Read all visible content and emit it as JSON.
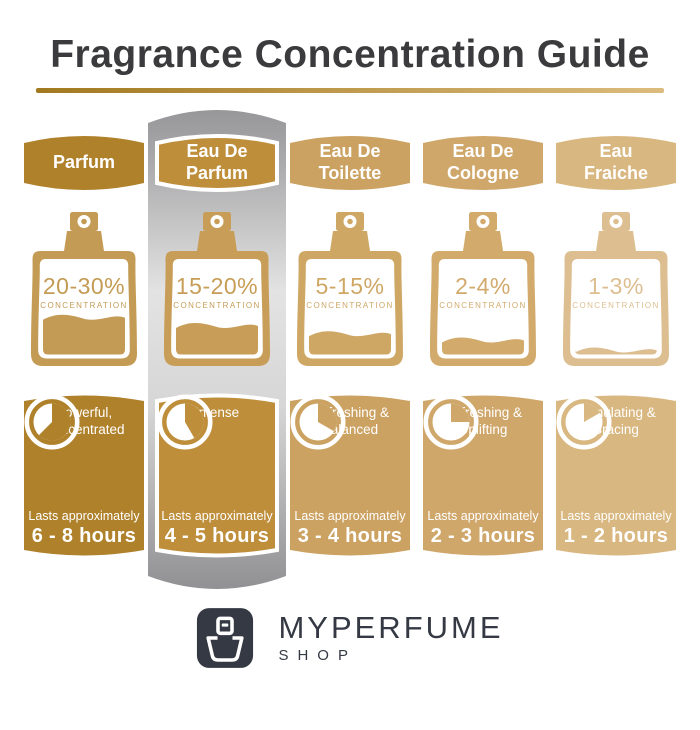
{
  "title": "Fragrance Concentration Guide",
  "shared": {
    "concentration_label": "CONCENTRATION",
    "lasts_label": "Lasts approximately"
  },
  "columns": [
    {
      "name": "Parfum",
      "concentration": "20-30%",
      "bottle_fill": 0.42,
      "description": "Powerful, Concentrated",
      "duration": "6 - 8 hours",
      "clock_angle_deg": 225,
      "badge_color": "#B0812B",
      "bottle_color": "#C49B55",
      "highlighted": false
    },
    {
      "name": "Eau De Parfum",
      "concentration": "15-20%",
      "bottle_fill": 0.33,
      "description": "Intense",
      "duration": "4 - 5 hours",
      "clock_angle_deg": 150,
      "badge_color": "#BE8E3B",
      "bottle_color": "#C79D57",
      "highlighted": true
    },
    {
      "name": "Eau De Toilette",
      "concentration": "5-15%",
      "bottle_fill": 0.24,
      "description": "Refreshing & Balanced",
      "duration": "3 - 4 hours",
      "clock_angle_deg": 120,
      "badge_color": "#CBA261",
      "bottle_color": "#CFA765",
      "highlighted": false
    },
    {
      "name": "Eau De Cologne",
      "concentration": "2-4%",
      "bottle_fill": 0.17,
      "description": "Refreshing & Uplifting",
      "duration": "2 - 3 hours",
      "clock_angle_deg": 90,
      "badge_color": "#D0A76A",
      "bottle_color": "#D2AA6C",
      "highlighted": false
    },
    {
      "name": "Eau Fraiche",
      "concentration": "1-3%",
      "bottle_fill": 0.06,
      "description": "Stimulating & Bracing",
      "duration": "1 - 2 hours",
      "clock_angle_deg": 60,
      "badge_color": "#D9B780",
      "bottle_color": "#DDBE90",
      "highlighted": false
    }
  ],
  "footer": {
    "brand": "MYPERFUME",
    "subtitle": "SHOP",
    "icon": "perfume-bottle-icon"
  },
  "colors": {
    "title": "#3B3B3D",
    "underline_start": "#A2791F",
    "underline_end": "#DCBC7E",
    "silver_dark": "#97979A",
    "silver_mid": "#E3E3E3",
    "silver_low": "#D6D6D6",
    "silver_bottom": "#919194",
    "logo_dark": "#343943"
  }
}
